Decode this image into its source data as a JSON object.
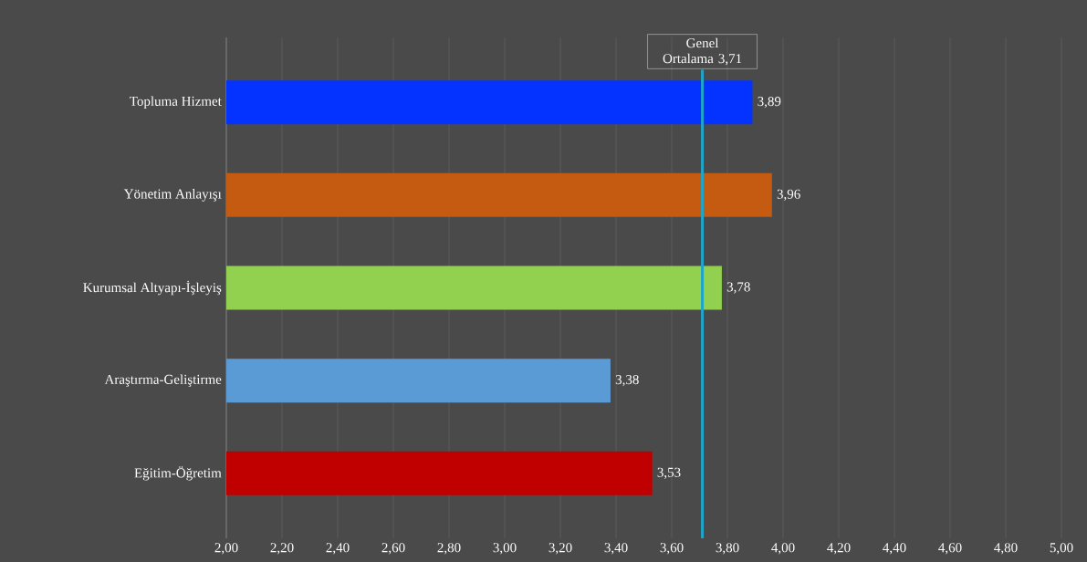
{
  "chart_data": {
    "type": "bar",
    "orientation": "horizontal",
    "categories": [
      "Topluma Hizmet",
      "Yönetim Anlayışı",
      "Kurumsal Altyapı-İşleyiş",
      "Araştırma-Geliştirme",
      "Eğitim-Öğretim"
    ],
    "values": [
      3.89,
      3.96,
      3.78,
      3.38,
      3.53
    ],
    "colors": [
      "#0433ff",
      "#c55a11",
      "#92d050",
      "#5b9bd5",
      "#c00000"
    ],
    "value_labels": [
      "3,89",
      "3,96",
      "3,78",
      "3,38",
      "3,53"
    ],
    "xlim": [
      2,
      5
    ],
    "xticks": [
      {
        "value": 2.0,
        "label": "2,00"
      },
      {
        "value": 2.2,
        "label": "2,20"
      },
      {
        "value": 2.4,
        "label": "2,40"
      },
      {
        "value": 2.6,
        "label": "2,60"
      },
      {
        "value": 2.8,
        "label": "2,80"
      },
      {
        "value": 3.0,
        "label": "3,00"
      },
      {
        "value": 3.2,
        "label": "3,20"
      },
      {
        "value": 3.4,
        "label": "3,40"
      },
      {
        "value": 3.6,
        "label": "3,60"
      },
      {
        "value": 3.8,
        "label": "3,80"
      },
      {
        "value": 4.0,
        "label": "4,00"
      },
      {
        "value": 4.2,
        "label": "4,20"
      },
      {
        "value": 4.4,
        "label": "4,40"
      },
      {
        "value": 4.6,
        "label": "4,60"
      },
      {
        "value": 4.8,
        "label": "4,80"
      },
      {
        "value": 5.0,
        "label": "5,00"
      }
    ],
    "grid": "x",
    "ref_lines": [
      {
        "axis": "x",
        "value": 3.71,
        "label": "Genel Ortalama 3,71",
        "color": "#1fa5c9"
      }
    ]
  }
}
